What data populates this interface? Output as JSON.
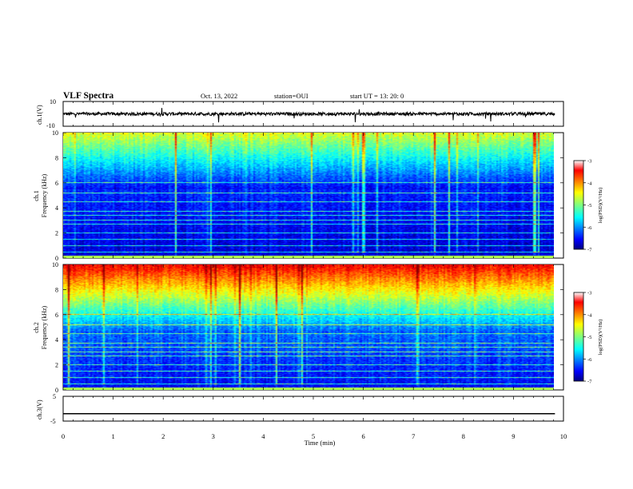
{
  "header": {
    "title": "VLF Spectra",
    "date": "Oct. 13, 2022",
    "station": "station=OUI",
    "start": "start  UT  =   13: 20: 0"
  },
  "chart_data": [
    {
      "type": "line",
      "panel": "ch1_waveform",
      "ylabel": "ch.1(V)",
      "yticks": [
        "10",
        "-10"
      ],
      "ylim": [
        -10,
        10
      ],
      "description_values": "noise trace near ~0 V with short spikes"
    },
    {
      "type": "heatmap",
      "panel": "ch1_spectrogram",
      "ylabel": "ch.1\nFrequency (kHz)",
      "ylabel_line1": "ch.1",
      "ylabel_line2": "Frequency (kHz)",
      "yticks": [
        "0",
        "2",
        "4",
        "6",
        "8",
        "10"
      ],
      "ylim": [
        0,
        10
      ],
      "xlim": [
        0,
        10
      ],
      "colorbar": {
        "ticks": [
          "-3",
          "-4",
          "-5",
          "-6",
          "-7"
        ],
        "label": "log(PSD)(V²/Hz)",
        "range": [
          -7,
          -3
        ]
      }
    },
    {
      "type": "heatmap",
      "panel": "ch2_spectrogram",
      "ylabel_line1": "ch.2",
      "ylabel_line2": "Frequency (kHz)",
      "yticks": [
        "0",
        "2",
        "4",
        "6",
        "8",
        "10"
      ],
      "ylim": [
        0,
        10
      ],
      "xlim": [
        0,
        10
      ],
      "colorbar": {
        "ticks": [
          "-3",
          "-4",
          "-5",
          "-6",
          "-7"
        ],
        "label": "log(PSD)(V²/Hz)",
        "range": [
          -7,
          -3
        ]
      }
    },
    {
      "type": "line",
      "panel": "ch3_waveform",
      "ylabel": "ch.3(V)",
      "yticks": [
        "5",
        "-5"
      ],
      "ylim": [
        -5,
        5
      ],
      "x": [
        0,
        9.83
      ],
      "y": [
        -2,
        -2
      ]
    }
  ],
  "xaxis": {
    "label": "Time (min)",
    "ticks": [
      "0",
      "1",
      "2",
      "3",
      "4",
      "5",
      "6",
      "7",
      "8",
      "9",
      "10"
    ],
    "range": [
      0,
      10
    ]
  },
  "colors": {
    "jet_low": "#00007f",
    "jet_high": "#7f0000"
  }
}
